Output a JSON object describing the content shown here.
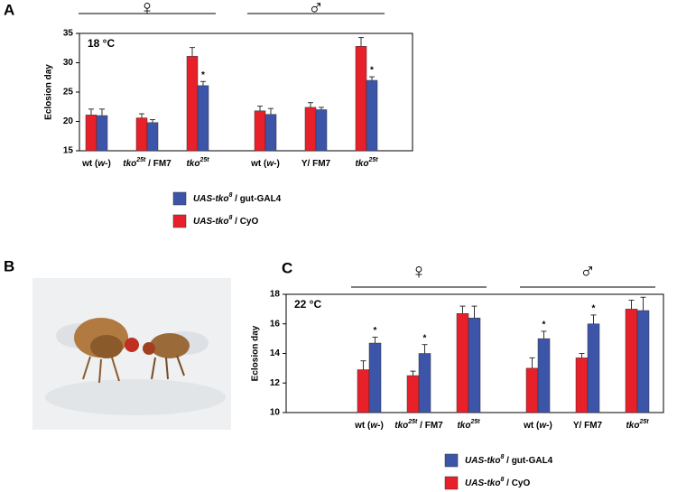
{
  "panels": [
    "A",
    "B",
    "C"
  ],
  "chart_data": [
    {
      "type": "bar",
      "ylabel": "Eclosion day",
      "annotation": "18 °C",
      "ylim": [
        15,
        35
      ],
      "yticks": [
        15,
        20,
        25,
        30,
        35
      ],
      "groups": [
        "♀",
        "♂"
      ],
      "categories": [
        [
          {
            "text": "wt (",
            "style": "normal"
          },
          {
            "text": "w-",
            "style": "italic"
          },
          {
            "text": ")",
            "style": "normal"
          }
        ],
        [
          {
            "text": "tko",
            "style": "italic"
          },
          {
            "text": "25t",
            "style": "sup"
          },
          {
            "text": " / FM7",
            "style": "normal"
          }
        ],
        [
          {
            "text": "tko",
            "style": "italic"
          },
          {
            "text": "25t",
            "style": "sup"
          }
        ],
        [
          {
            "text": "wt (",
            "style": "normal"
          },
          {
            "text": "w-",
            "style": "italic"
          },
          {
            "text": ")",
            "style": "normal"
          }
        ],
        [
          {
            "text": "Y/ FM7",
            "style": "normal"
          }
        ],
        [
          {
            "text": "tko",
            "style": "italic"
          },
          {
            "text": "25t",
            "style": "sup"
          }
        ]
      ],
      "series": [
        {
          "name": [
            {
              "text": "UAS-tko",
              "style": "italic"
            },
            {
              "text": "8",
              "style": "sup"
            },
            {
              "text": " / CyO",
              "style": "normal"
            }
          ],
          "color": "#e8202a",
          "values": [
            21.1,
            20.6,
            31.1,
            21.8,
            22.4,
            32.8
          ],
          "errors": [
            1.0,
            0.7,
            1.5,
            0.8,
            0.8,
            1.5
          ]
        },
        {
          "name": [
            {
              "text": "UAS-tko",
              "style": "italic"
            },
            {
              "text": "8",
              "style": "sup"
            },
            {
              "text": " / gut-GAL4",
              "style": "normal"
            }
          ],
          "color": "#3d55a8",
          "values": [
            21.0,
            19.8,
            26.1,
            21.2,
            22.0,
            27.0
          ],
          "errors": [
            1.1,
            0.5,
            0.7,
            1.0,
            0.4,
            0.6
          ]
        }
      ],
      "stars": [
        null,
        null,
        "*",
        null,
        null,
        "*"
      ]
    },
    {
      "type": "bar",
      "ylabel": "Eclosion day",
      "annotation": "22 °C",
      "ylim": [
        10,
        18
      ],
      "yticks": [
        10,
        12,
        14,
        16,
        18
      ],
      "groups": [
        "♀",
        "♂"
      ],
      "categories": [
        [
          {
            "text": "wt (",
            "style": "normal"
          },
          {
            "text": "w-",
            "style": "italic"
          },
          {
            "text": ")",
            "style": "normal"
          }
        ],
        [
          {
            "text": "tko",
            "style": "italic"
          },
          {
            "text": "25t",
            "style": "sup"
          },
          {
            "text": " / FM7",
            "style": "normal"
          }
        ],
        [
          {
            "text": "tko",
            "style": "italic"
          },
          {
            "text": "25t",
            "style": "sup"
          }
        ],
        [
          {
            "text": "wt (",
            "style": "normal"
          },
          {
            "text": "w-",
            "style": "italic"
          },
          {
            "text": ")",
            "style": "normal"
          }
        ],
        [
          {
            "text": "Y/ FM7",
            "style": "normal"
          }
        ],
        [
          {
            "text": "tko",
            "style": "italic"
          },
          {
            "text": "25t",
            "style": "sup"
          }
        ]
      ],
      "series": [
        {
          "name": [
            {
              "text": "UAS-tko",
              "style": "italic"
            },
            {
              "text": "8",
              "style": "sup"
            },
            {
              "text": " / CyO",
              "style": "normal"
            }
          ],
          "color": "#e8202a",
          "values": [
            12.9,
            12.5,
            16.7,
            13.0,
            13.7,
            17.0
          ],
          "errors": [
            0.6,
            0.3,
            0.5,
            0.7,
            0.3,
            0.6
          ]
        },
        {
          "name": [
            {
              "text": "UAS-tko",
              "style": "italic"
            },
            {
              "text": "8",
              "style": "sup"
            },
            {
              "text": " / gut-GAL4",
              "style": "normal"
            }
          ],
          "color": "#3d55a8",
          "values": [
            14.7,
            14.0,
            16.4,
            15.0,
            16.0,
            16.9
          ],
          "errors": [
            0.4,
            0.6,
            0.8,
            0.5,
            0.6,
            0.9
          ]
        }
      ],
      "stars": [
        "*",
        "*",
        null,
        "*",
        "*",
        null
      ]
    }
  ]
}
